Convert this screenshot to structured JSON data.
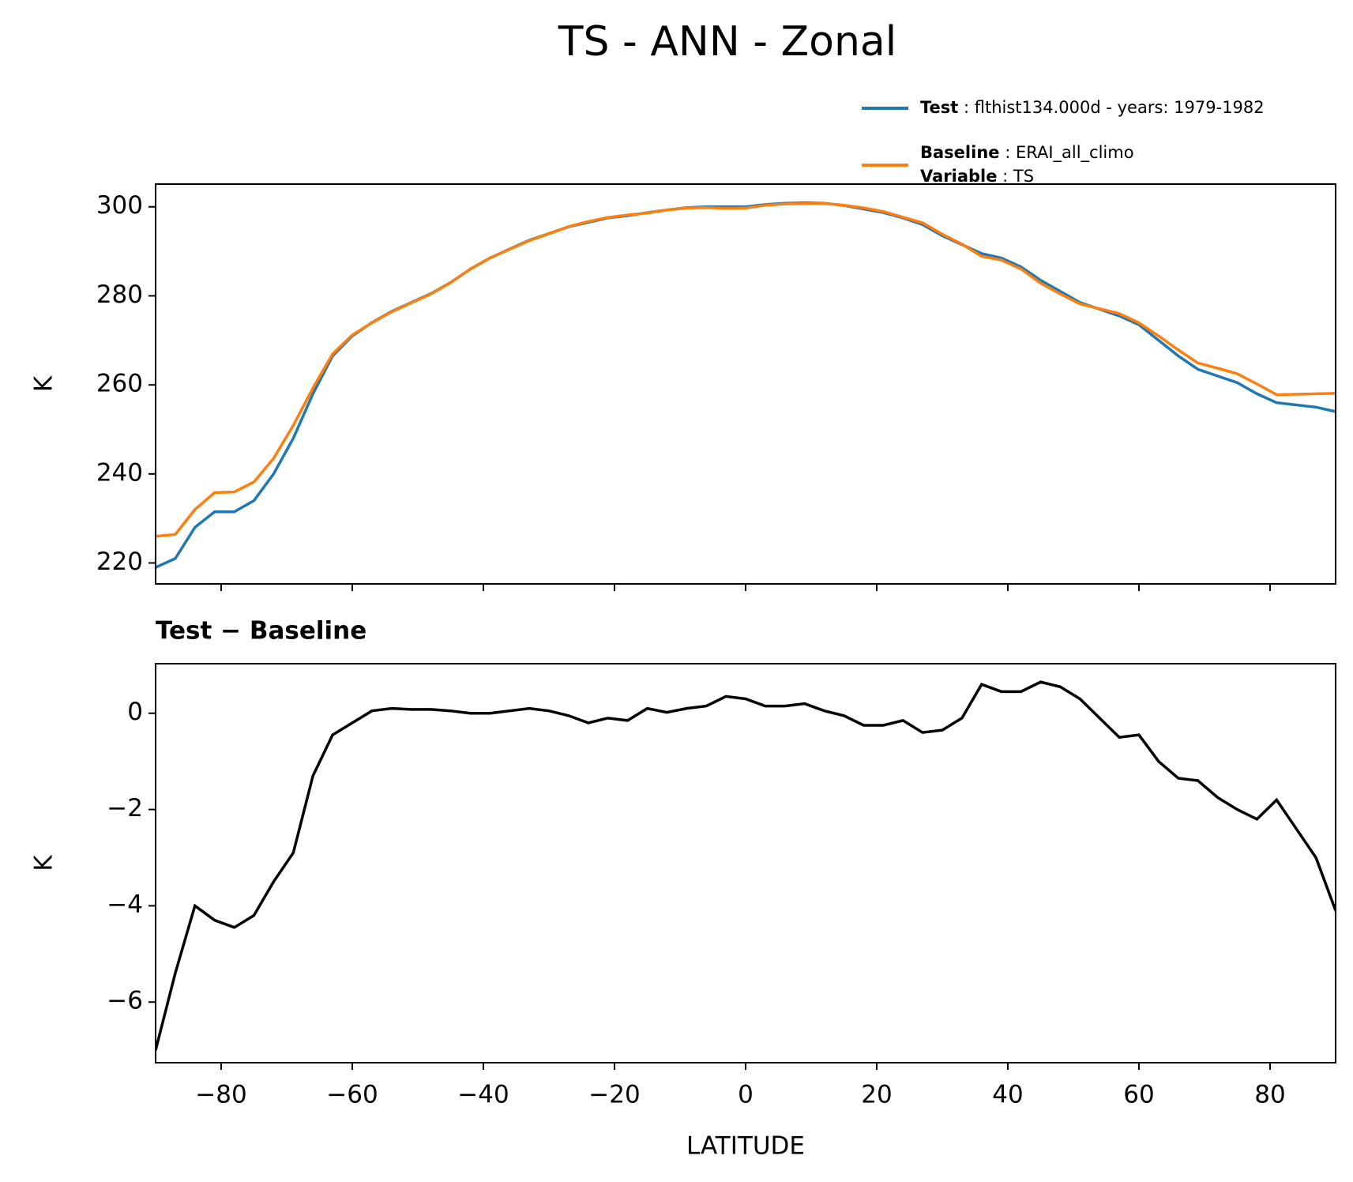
{
  "chart_data": [
    {
      "type": "line",
      "title": "TS - ANN - Zonal",
      "ylabel": "K",
      "show_xtick_labels": false,
      "x": [
        -90,
        -87,
        -84,
        -81,
        -78,
        -75,
        -72,
        -69,
        -66,
        -63,
        -60,
        -57,
        -54,
        -51,
        -48,
        -45,
        -42,
        -39,
        -36,
        -33,
        -30,
        -27,
        -24,
        -21,
        -18,
        -15,
        -12,
        -9,
        -6,
        -3,
        0,
        3,
        6,
        9,
        12,
        15,
        18,
        21,
        24,
        27,
        30,
        33,
        36,
        39,
        42,
        45,
        48,
        51,
        54,
        57,
        60,
        63,
        66,
        69,
        72,
        75,
        78,
        81,
        84,
        87,
        90
      ],
      "series": [
        {
          "name": "Test: flthist134.000d - years: 1979-1982",
          "color": "#1f77b4",
          "values": [
            219,
            221,
            228,
            231.5,
            231.5,
            234,
            240,
            248,
            258,
            266.5,
            271,
            274,
            276.5,
            278.5,
            280.5,
            283,
            286,
            288.5,
            290.5,
            292.5,
            294,
            295.5,
            296.5,
            297.5,
            298,
            298.7,
            299.3,
            299.8,
            300,
            300,
            300,
            300.5,
            300.8,
            300.9,
            300.8,
            300.3,
            299.5,
            298.7,
            297.5,
            296,
            293.5,
            291.5,
            289.5,
            288.5,
            286.5,
            283.5,
            281,
            278.5,
            277,
            275.5,
            273.5,
            270,
            266.5,
            263.5,
            262,
            260.5,
            258,
            256,
            255.5,
            255,
            254
          ]
        },
        {
          "name": "Baseline: ERAI_all_climo\nVariable: TS",
          "color": "#ff7f0e",
          "values": [
            226,
            226.4,
            232,
            235.8,
            235.95,
            238.2,
            243.5,
            250.9,
            259.3,
            266.95,
            271.2,
            273.95,
            276.4,
            278.42,
            280.42,
            282.95,
            286,
            288.5,
            290.45,
            292.4,
            293.95,
            295.55,
            296.7,
            297.6,
            298.15,
            298.6,
            299.28,
            299.7,
            299.85,
            299.65,
            299.7,
            300.35,
            300.65,
            300.7,
            300.75,
            300.35,
            299.75,
            298.95,
            297.65,
            296.4,
            293.85,
            291.6,
            288.9,
            288.05,
            286.05,
            282.85,
            280.45,
            278.2,
            277.1,
            276,
            273.95,
            271,
            267.85,
            264.9,
            263.75,
            262.5,
            260.2,
            257.8,
            257.9,
            258,
            258.1
          ]
        }
      ],
      "xlim": [
        -90,
        90
      ],
      "xticks": [
        -80,
        -60,
        -40,
        -20,
        0,
        20,
        40,
        60,
        80
      ],
      "ylim": [
        215.3,
        305.1
      ],
      "yticks": [
        220,
        240,
        260,
        280,
        300
      ],
      "legend": "upper right"
    },
    {
      "type": "line",
      "title": "Test − Baseline",
      "ylabel": "K",
      "xlabel": "LATITUDE",
      "show_xtick_labels": true,
      "color": "#000000",
      "x": [
        -90,
        -87,
        -84,
        -81,
        -78,
        -75,
        -72,
        -69,
        -66,
        -63,
        -60,
        -57,
        -54,
        -51,
        -48,
        -45,
        -42,
        -39,
        -36,
        -33,
        -30,
        -27,
        -24,
        -21,
        -18,
        -15,
        -12,
        -9,
        -6,
        -3,
        0,
        3,
        6,
        9,
        12,
        15,
        18,
        21,
        24,
        27,
        30,
        33,
        36,
        39,
        42,
        45,
        48,
        51,
        54,
        57,
        60,
        63,
        66,
        69,
        72,
        75,
        78,
        81,
        84,
        87,
        90
      ],
      "values": [
        -7,
        -5.4,
        -4,
        -4.3,
        -4.45,
        -4.2,
        -3.5,
        -2.9,
        -1.3,
        -0.45,
        -0.2,
        0.05,
        0.1,
        0.08,
        0.08,
        0.05,
        0,
        0,
        0.05,
        0.1,
        0.05,
        -0.05,
        -0.2,
        -0.1,
        -0.15,
        0.1,
        0.02,
        0.1,
        0.15,
        0.35,
        0.3,
        0.15,
        0.15,
        0.2,
        0.05,
        -0.05,
        -0.25,
        -0.25,
        -0.15,
        -0.4,
        -0.35,
        -0.1,
        0.6,
        0.45,
        0.45,
        0.65,
        0.55,
        0.3,
        -0.1,
        -0.5,
        -0.45,
        -1,
        -1.35,
        -1.4,
        -1.75,
        -2,
        -2.2,
        -1.8,
        -2.4,
        -3,
        -4.1
      ],
      "xlim": [
        -90,
        90
      ],
      "xticks": [
        {
          "value": -80,
          "label": "−80"
        },
        {
          "value": -60,
          "label": "−60"
        },
        {
          "value": -40,
          "label": "−40"
        },
        {
          "value": -20,
          "label": "−20"
        },
        0,
        20,
        40,
        60,
        80
      ],
      "ylim": [
        -7.26,
        1.03
      ],
      "yticks": [
        {
          "value": -6,
          "label": "−6"
        },
        {
          "value": -4,
          "label": "−4"
        },
        {
          "value": -2,
          "label": "−2"
        },
        0
      ]
    }
  ]
}
